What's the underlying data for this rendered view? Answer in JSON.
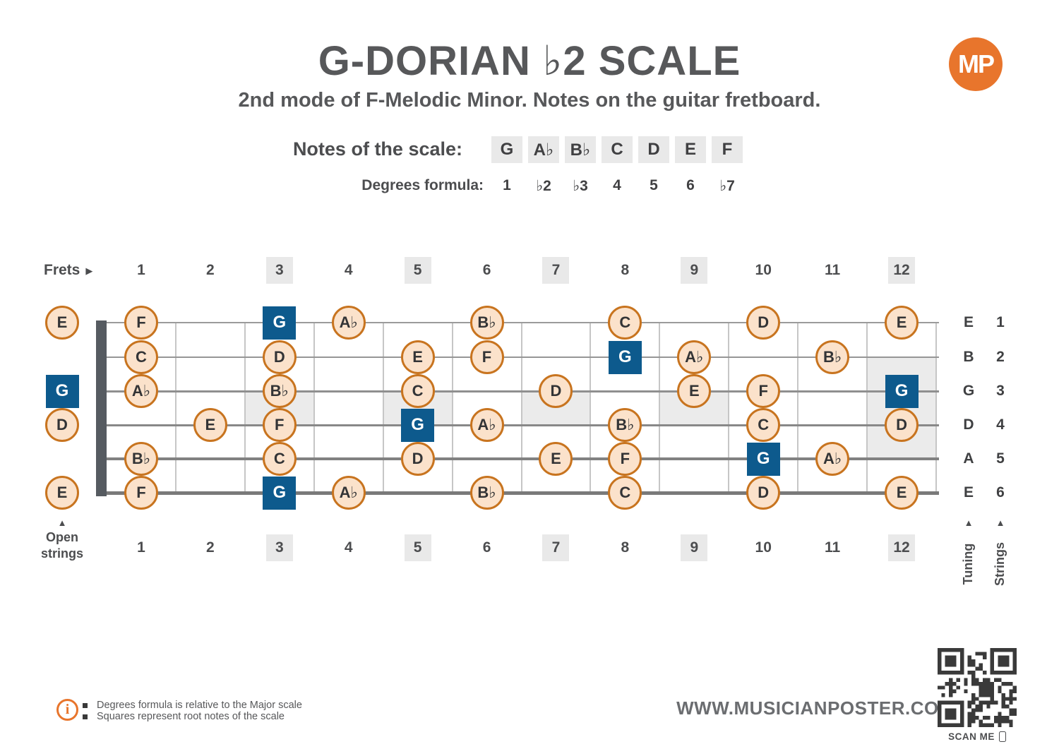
{
  "header": {
    "title": "G-DORIAN ♭2 SCALE",
    "subtitle": "2nd mode of F-Melodic Minor. Notes on the guitar fretboard.",
    "logo_text": "MP"
  },
  "scale": {
    "notes_label": "Notes of the scale:",
    "notes": [
      "G",
      "A♭",
      "B♭",
      "C",
      "D",
      "E",
      "F"
    ],
    "degrees_label": "Degrees formula:",
    "degrees": [
      "1",
      "♭2",
      "♭3",
      "4",
      "5",
      "6",
      "♭7"
    ]
  },
  "fretboard": {
    "frets_label": "Frets",
    "fret_numbers": [
      "1",
      "2",
      "3",
      "4",
      "5",
      "6",
      "7",
      "8",
      "9",
      "10",
      "11",
      "12"
    ],
    "marked_frets": [
      3,
      5,
      7,
      9,
      12
    ],
    "inlays": [
      {
        "fret": 3,
        "top_string": 3,
        "bottom_string": 4
      },
      {
        "fret": 5,
        "top_string": 3,
        "bottom_string": 4
      },
      {
        "fret": 7,
        "top_string": 3,
        "bottom_string": 4
      },
      {
        "fret": 9,
        "top_string": 3,
        "bottom_string": 4
      },
      {
        "fret": 12,
        "top_string": 2,
        "bottom_string": 5
      }
    ],
    "open_strings_label": "Open strings",
    "tuning_label": "Tuning",
    "strings_label": "Strings",
    "strings": [
      {
        "number": "1",
        "tuning": "E",
        "open": {
          "note": "E",
          "root": false
        },
        "frets": [
          {
            "fret": 1,
            "note": "F",
            "root": false
          },
          {
            "fret": 3,
            "note": "G",
            "root": true
          },
          {
            "fret": 4,
            "note": "A♭",
            "root": false
          },
          {
            "fret": 6,
            "note": "B♭",
            "root": false
          },
          {
            "fret": 8,
            "note": "C",
            "root": false
          },
          {
            "fret": 10,
            "note": "D",
            "root": false
          },
          {
            "fret": 12,
            "note": "E",
            "root": false
          }
        ]
      },
      {
        "number": "2",
        "tuning": "B",
        "open": null,
        "frets": [
          {
            "fret": 1,
            "note": "C",
            "root": false
          },
          {
            "fret": 3,
            "note": "D",
            "root": false
          },
          {
            "fret": 5,
            "note": "E",
            "root": false
          },
          {
            "fret": 6,
            "note": "F",
            "root": false
          },
          {
            "fret": 8,
            "note": "G",
            "root": true
          },
          {
            "fret": 9,
            "note": "A♭",
            "root": false
          },
          {
            "fret": 11,
            "note": "B♭",
            "root": false
          }
        ]
      },
      {
        "number": "3",
        "tuning": "G",
        "open": {
          "note": "G",
          "root": true
        },
        "frets": [
          {
            "fret": 1,
            "note": "A♭",
            "root": false
          },
          {
            "fret": 3,
            "note": "B♭",
            "root": false
          },
          {
            "fret": 5,
            "note": "C",
            "root": false
          },
          {
            "fret": 7,
            "note": "D",
            "root": false
          },
          {
            "fret": 9,
            "note": "E",
            "root": false
          },
          {
            "fret": 10,
            "note": "F",
            "root": false
          },
          {
            "fret": 12,
            "note": "G",
            "root": true
          }
        ]
      },
      {
        "number": "4",
        "tuning": "D",
        "open": {
          "note": "D",
          "root": false
        },
        "frets": [
          {
            "fret": 2,
            "note": "E",
            "root": false
          },
          {
            "fret": 3,
            "note": "F",
            "root": false
          },
          {
            "fret": 5,
            "note": "G",
            "root": true
          },
          {
            "fret": 6,
            "note": "A♭",
            "root": false
          },
          {
            "fret": 8,
            "note": "B♭",
            "root": false
          },
          {
            "fret": 10,
            "note": "C",
            "root": false
          },
          {
            "fret": 12,
            "note": "D",
            "root": false
          }
        ]
      },
      {
        "number": "5",
        "tuning": "A",
        "open": null,
        "frets": [
          {
            "fret": 1,
            "note": "B♭",
            "root": false
          },
          {
            "fret": 3,
            "note": "C",
            "root": false
          },
          {
            "fret": 5,
            "note": "D",
            "root": false
          },
          {
            "fret": 7,
            "note": "E",
            "root": false
          },
          {
            "fret": 8,
            "note": "F",
            "root": false
          },
          {
            "fret": 10,
            "note": "G",
            "root": true
          },
          {
            "fret": 11,
            "note": "A♭",
            "root": false
          }
        ]
      },
      {
        "number": "6",
        "tuning": "E",
        "open": {
          "note": "E",
          "root": false
        },
        "frets": [
          {
            "fret": 1,
            "note": "F",
            "root": false
          },
          {
            "fret": 3,
            "note": "G",
            "root": true
          },
          {
            "fret": 4,
            "note": "A♭",
            "root": false
          },
          {
            "fret": 6,
            "note": "B♭",
            "root": false
          },
          {
            "fret": 8,
            "note": "C",
            "root": false
          },
          {
            "fret": 10,
            "note": "D",
            "root": false
          },
          {
            "fret": 12,
            "note": "E",
            "root": false
          }
        ]
      }
    ]
  },
  "legend": {
    "items": [
      "Degrees formula is relative to the Major scale",
      "Squares represent root notes of the scale"
    ]
  },
  "footer": {
    "website": "WWW.MUSICIANPOSTER.COM",
    "scan_label": "SCAN ME"
  },
  "icons": {
    "right_arrow": "▶",
    "up_arrow": "▲",
    "info": "i"
  },
  "colors": {
    "accent_orange": "#e8752c",
    "note_fill": "#fbe2cb",
    "note_border": "#c8741f",
    "root_blue": "#0d5a8d",
    "gray_box": "#e9e9e9",
    "inlay_gray": "#ebebeb",
    "text_dark": "#57585a"
  }
}
